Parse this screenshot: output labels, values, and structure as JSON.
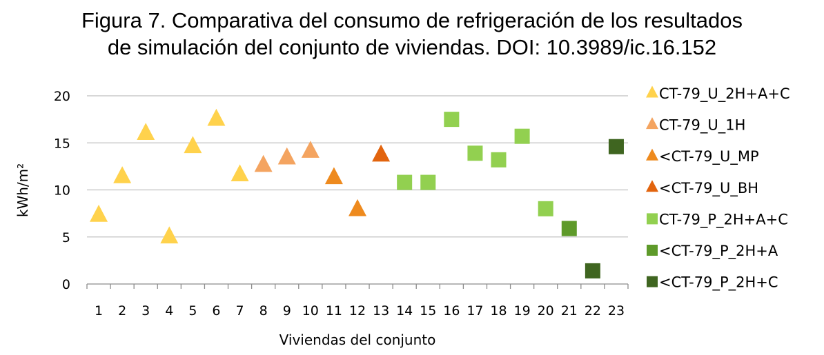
{
  "title_line1": "Figura 7. Comparativa del consumo de refrigeración de los resultados",
  "title_line2": "de simulación del conjunto de viviendas. DOI: 10.3989/ic.16.152",
  "chart_data": {
    "type": "scatter",
    "xlabel": "Viviendas del conjunto",
    "ylabel": "kWh/m²",
    "ylim": [
      0,
      20
    ],
    "yticks": [
      0,
      5,
      10,
      15,
      20
    ],
    "categories": [
      "1",
      "2",
      "3",
      "4",
      "5",
      "6",
      "7",
      "8",
      "9",
      "10",
      "11",
      "12",
      "13",
      "14",
      "15",
      "16",
      "17",
      "18",
      "19",
      "20",
      "21",
      "22",
      "23"
    ],
    "grid": "horizontal",
    "legend_position": "right",
    "series": [
      {
        "name": "CT-79_U_2H+A+C",
        "marker": "triangle",
        "color": "#FFD24C",
        "points": [
          {
            "x": 1,
            "y": 7.3
          },
          {
            "x": 2,
            "y": 11.4
          },
          {
            "x": 3,
            "y": 16.0
          },
          {
            "x": 4,
            "y": 5.0
          },
          {
            "x": 5,
            "y": 14.6
          },
          {
            "x": 6,
            "y": 17.5
          },
          {
            "x": 7,
            "y": 11.6
          }
        ]
      },
      {
        "name": "CT-79_U_1H",
        "marker": "triangle",
        "color": "#F4A460",
        "points": [
          {
            "x": 8,
            "y": 12.6
          },
          {
            "x": 9,
            "y": 13.4
          },
          {
            "x": 10,
            "y": 14.1
          }
        ]
      },
      {
        "name": "<CT-79_U_MP",
        "marker": "triangle",
        "color": "#EE8A1E",
        "points": [
          {
            "x": 11,
            "y": 11.3
          },
          {
            "x": 12,
            "y": 7.9
          }
        ]
      },
      {
        "name": "<CT-79_U_BH",
        "marker": "triangle",
        "color": "#E2640E",
        "points": [
          {
            "x": 13,
            "y": 13.7
          }
        ]
      },
      {
        "name": "CT-79_P_2H+A+C",
        "marker": "square",
        "color": "#92D050",
        "points": [
          {
            "x": 14,
            "y": 10.8
          },
          {
            "x": 15,
            "y": 10.8
          },
          {
            "x": 16,
            "y": 17.5
          },
          {
            "x": 17,
            "y": 13.9
          },
          {
            "x": 18,
            "y": 13.2
          },
          {
            "x": 19,
            "y": 15.7
          },
          {
            "x": 20,
            "y": 8.0
          }
        ]
      },
      {
        "name": "<CT-79_P_2H+A",
        "marker": "square",
        "color": "#5E9A2A",
        "points": [
          {
            "x": 21,
            "y": 5.9
          }
        ]
      },
      {
        "name": "<CT-79_P_2H+C",
        "marker": "square",
        "color": "#3F6520",
        "points": [
          {
            "x": 22,
            "y": 1.4
          },
          {
            "x": 23,
            "y": 14.6
          }
        ]
      }
    ]
  }
}
